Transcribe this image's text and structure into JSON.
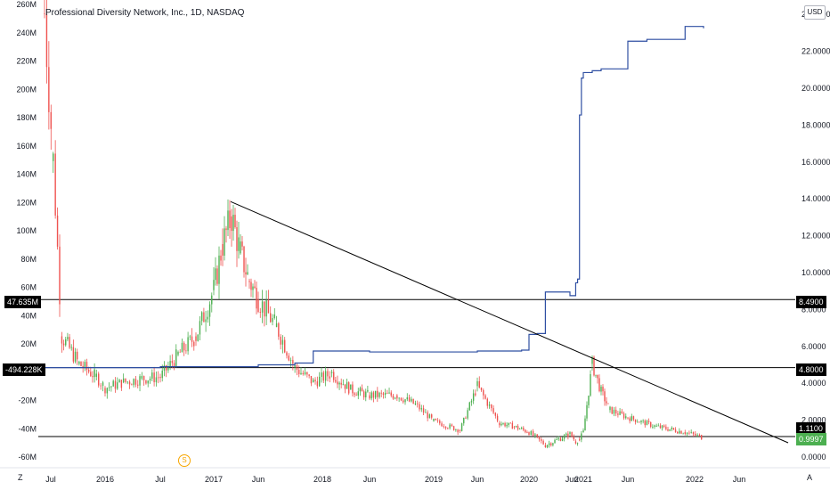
{
  "header": {
    "title": "Professional Diversity Network, Inc., 1D, NASDAQ",
    "currency": "USD"
  },
  "bottom_bar": {
    "left_label": "Z",
    "right_label": "A"
  },
  "marker": {
    "dividend_label": "S"
  },
  "colors": {
    "up": "#26a69a",
    "up_candle": "#4caf50",
    "down": "#ef5350",
    "line_indicator": "#2f4fa2",
    "trendline": "#000000",
    "last_price_tag": "#4caf50",
    "level_tag": "#000000"
  },
  "left_axis_labels": [
    "260M",
    "240M",
    "220M",
    "200M",
    "180M",
    "160M",
    "140M",
    "120M",
    "100M",
    "80M",
    "60M",
    "40M",
    "20M",
    "0",
    "-20M",
    "-40M",
    "-60M"
  ],
  "right_axis_labels": [
    "24.0000",
    "22.0000",
    "20.0000",
    "18.0000",
    "16.0000",
    "14.0000",
    "12.0000",
    "10.0000",
    "8.0000",
    "6.0000",
    "4.0000",
    "2.0000",
    "0.0000"
  ],
  "x_axis_labels": [
    "Jul",
    "2016",
    "Jul",
    "2017",
    "Jun",
    "2018",
    "Jun",
    "2019",
    "Jun",
    "2020",
    "Jun",
    "2021",
    "Jun",
    "2022",
    "Jun"
  ],
  "tags": {
    "left_upper": "47.635M",
    "left_lower": "-494.228K",
    "right_8490": "8.4900",
    "right_4800": "4.8000",
    "right_1110": "1.1100",
    "right_last": "0.9997"
  },
  "chart_data": {
    "type": "line",
    "title": "Professional Diversity Network, Inc., 1D, NASDAQ",
    "x_axis": {
      "ticks": [
        "Jul",
        "2016",
        "Jul",
        "2017",
        "Jun",
        "2018",
        "Jun",
        "2019",
        "Jun",
        "2020",
        "Jun",
        "2021",
        "Jun",
        "2022",
        "Jun"
      ]
    },
    "y_right": {
      "label": "USD",
      "range": [
        0,
        24
      ],
      "ticks": [
        0,
        2,
        4,
        6,
        8,
        10,
        12,
        14,
        16,
        18,
        20,
        22,
        24
      ]
    },
    "y_left": {
      "range": [
        -60000000,
        260000000
      ]
    },
    "price_series": {
      "type": "candlestick",
      "dates": [
        "2015-06",
        "2015-07",
        "2015-08",
        "2015-10",
        "2015-12",
        "2016-01",
        "2016-03",
        "2016-05",
        "2016-07",
        "2016-09",
        "2016-11",
        "2017-01",
        "2017-02",
        "2017-03",
        "2017-04",
        "2017-05",
        "2017-06",
        "2017-08",
        "2017-10",
        "2017-12",
        "2018-02",
        "2018-04",
        "2018-06",
        "2018-09",
        "2018-11",
        "2019-01",
        "2019-04",
        "2019-06",
        "2019-09",
        "2019-11",
        "2020-01",
        "2020-03",
        "2020-06",
        "2020-09",
        "2020-11",
        "2021-01",
        "2021-02",
        "2021-03",
        "2021-04",
        "2021-06",
        "2021-09",
        "2021-12",
        "2022-02"
      ],
      "close": [
        24.0,
        16.0,
        6.5,
        5.0,
        4.3,
        3.7,
        4.0,
        4.2,
        4.3,
        5.5,
        6.5,
        9.0,
        11.5,
        13.0,
        11.0,
        9.5,
        8.5,
        7.0,
        4.8,
        4.0,
        4.5,
        3.6,
        3.3,
        3.3,
        2.8,
        1.9,
        1.4,
        3.8,
        1.8,
        1.6,
        1.3,
        0.6,
        1.2,
        0.8,
        0.9,
        1.3,
        5.0,
        3.5,
        2.5,
        2.1,
        1.6,
        1.3,
        1.0
      ]
    },
    "series": [
      {
        "name": "",
        "dates": [
          "2015-06",
          "2016-07",
          "2017-06",
          "2017-10",
          "2017-12",
          "2018-06",
          "2019-06",
          "2019-12",
          "2020-01",
          "2020-02",
          "2020-03",
          "2020-06",
          "2020-09",
          "2020-10",
          "2020-11",
          "2020-12",
          "2021-01",
          "2021-02",
          "2021-03",
          "2021-06",
          "2021-08",
          "2021-12",
          "2022-02"
        ],
        "values": [
          4.8,
          4.85,
          4.95,
          5.05,
          5.7,
          5.65,
          5.7,
          5.75,
          6.6,
          6.65,
          8.9,
          8.7,
          9.4,
          9.6,
          18.5,
          20.5,
          20.8,
          20.9,
          21.0,
          22.5,
          22.6,
          23.3,
          23.2
        ]
      }
    ],
    "horizontal_levels": [
      8.49,
      4.8,
      1.11
    ],
    "last_price": 0.9997,
    "trendline": {
      "from": {
        "date": "2017-03",
        "value": 13.8
      },
      "to": {
        "date": "2022-08",
        "value": 0.6
      }
    }
  }
}
